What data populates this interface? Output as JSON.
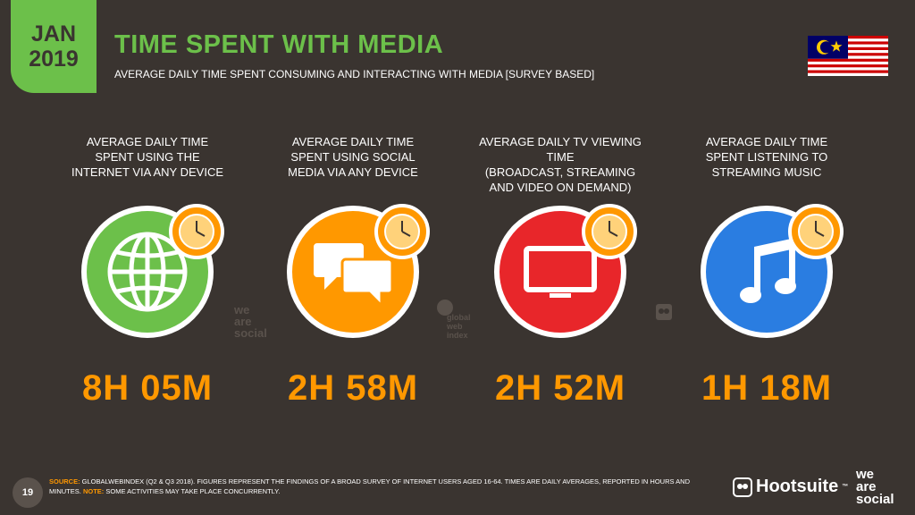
{
  "header": {
    "month": "JAN",
    "year": "2019",
    "title": "TIME SPENT WITH MEDIA",
    "subtitle": "AVERAGE DAILY TIME SPENT CONSUMING AND INTERACTING WITH MEDIA [SURVEY BASED]"
  },
  "colors": {
    "background": "#3a3430",
    "accent_green": "#6cc04a",
    "accent_orange": "#ff9800",
    "tv_red": "#e8262a",
    "music_blue": "#2a7de1"
  },
  "cards": [
    {
      "label_lines": [
        "AVERAGE DAILY TIME",
        "SPENT USING THE",
        "INTERNET VIA ANY DEVICE"
      ],
      "value": "8H 05M",
      "icon": "globe-icon",
      "color": "#6cc04a"
    },
    {
      "label_lines": [
        "AVERAGE DAILY TIME",
        "SPENT USING SOCIAL",
        "MEDIA VIA ANY DEVICE"
      ],
      "value": "2H 58M",
      "icon": "chat-bubbles-icon",
      "color": "#ff9800"
    },
    {
      "label_lines": [
        "AVERAGE DAILY TV VIEWING TIME",
        "(BROADCAST, STREAMING",
        "AND VIDEO ON DEMAND)"
      ],
      "value": "2H 52M",
      "icon": "tv-icon",
      "color": "#e8262a"
    },
    {
      "label_lines": [
        "AVERAGE DAILY TIME",
        "SPENT LISTENING TO",
        "STREAMING MUSIC"
      ],
      "value": "1H 18M",
      "icon": "music-note-icon",
      "color": "#2a7de1"
    }
  ],
  "watermarks": {
    "was": [
      "we",
      "are",
      "social"
    ],
    "gwi": [
      "global",
      "web",
      "index"
    ]
  },
  "footer": {
    "page": "19",
    "source_label": "SOURCE:",
    "source_text": " GLOBALWEBINDEX (Q2 & Q3 2018). FIGURES REPRESENT THE FINDINGS OF A BROAD SURVEY OF INTERNET USERS AGED 16-64. TIMES ARE DAILY AVERAGES, REPORTED IN HOURS AND MINUTES.",
    "note_label": "NOTE:",
    "note_text": " SOME ACTIVITIES MAY TAKE PLACE CONCURRENTLY.",
    "hootsuite": "Hootsuite",
    "tm": "™",
    "was_logo": [
      "we",
      "are",
      "social"
    ]
  }
}
